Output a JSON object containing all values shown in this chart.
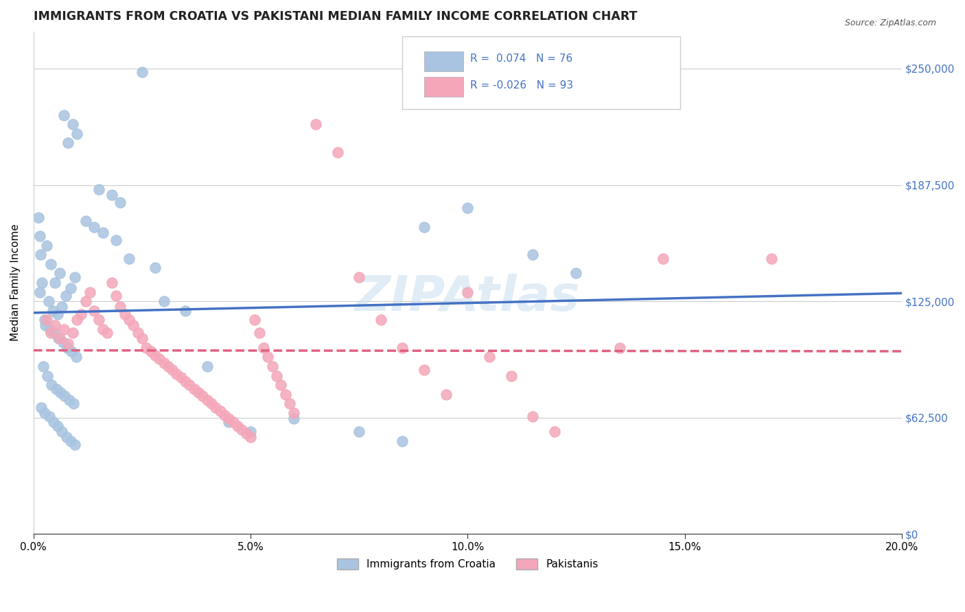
{
  "title": "IMMIGRANTS FROM CROATIA VS PAKISTANI MEDIAN FAMILY INCOME CORRELATION CHART",
  "source": "Source: ZipAtlas.com",
  "xlabel_ticks": [
    "0.0%",
    "5.0%",
    "10.0%",
    "15.0%",
    "20.0%"
  ],
  "xlabel_tick_vals": [
    0.0,
    5.0,
    10.0,
    15.0,
    20.0
  ],
  "ylabel": "Median Family Income",
  "ylabel_ticks": [
    "$0",
    "$62,500",
    "$125,000",
    "$187,500",
    "$250,000"
  ],
  "ylabel_tick_vals": [
    0,
    62500,
    125000,
    187500,
    250000
  ],
  "xlim": [
    0.0,
    20.0
  ],
  "ylim": [
    0,
    270000
  ],
  "croatia_color": "#a8c4e0",
  "pakistani_color": "#f4a7b9",
  "croatia_line_color": "#4472C4",
  "pakistani_line_color": "#E06080",
  "legend_R_croatia": "0.074",
  "legend_N_croatia": "76",
  "legend_R_pakistani": "-0.026",
  "legend_N_pakistani": "93",
  "watermark": "ZIPAtlas",
  "croatia_scatter_x": [
    0.5,
    0.9,
    1.0,
    0.7,
    0.8,
    0.3,
    0.4,
    0.2,
    0.15,
    0.6,
    0.35,
    0.45,
    0.25,
    0.55,
    0.65,
    0.75,
    0.85,
    0.95,
    0.28,
    0.38,
    0.48,
    0.58,
    0.68,
    0.78,
    0.88,
    0.98,
    0.22,
    0.32,
    0.42,
    0.52,
    0.62,
    0.72,
    0.82,
    0.92,
    0.18,
    0.26,
    0.36,
    0.46,
    0.56,
    0.66,
    0.76,
    0.86,
    0.96,
    0.12,
    0.14,
    0.16,
    2.5,
    1.5,
    1.8,
    2.0,
    1.2,
    1.4,
    1.6,
    1.9,
    2.2,
    2.8,
    3.0,
    3.5,
    4.0,
    4.5,
    5.0,
    6.0,
    7.5,
    8.5,
    9.0,
    10.0,
    11.5,
    12.5
  ],
  "croatia_scatter_y": [
    135000,
    220000,
    215000,
    225000,
    210000,
    155000,
    145000,
    135000,
    130000,
    140000,
    125000,
    120000,
    115000,
    118000,
    122000,
    128000,
    132000,
    138000,
    112000,
    110000,
    108000,
    105000,
    103000,
    100000,
    98000,
    95000,
    90000,
    85000,
    80000,
    78000,
    76000,
    74000,
    72000,
    70000,
    68000,
    65000,
    63000,
    60000,
    58000,
    55000,
    52000,
    50000,
    48000,
    170000,
    160000,
    150000,
    248000,
    185000,
    182000,
    178000,
    168000,
    165000,
    162000,
    158000,
    148000,
    143000,
    125000,
    120000,
    90000,
    60000,
    55000,
    62000,
    55000,
    50000,
    165000,
    175000,
    150000,
    140000
  ],
  "pakistani_scatter_x": [
    0.3,
    0.4,
    0.5,
    0.6,
    0.7,
    0.8,
    0.9,
    1.0,
    1.1,
    1.2,
    1.3,
    1.4,
    1.5,
    1.6,
    1.7,
    1.8,
    1.9,
    2.0,
    2.1,
    2.2,
    2.3,
    2.4,
    2.5,
    2.6,
    2.7,
    2.8,
    2.9,
    3.0,
    3.1,
    3.2,
    3.3,
    3.4,
    3.5,
    3.6,
    3.7,
    3.8,
    3.9,
    4.0,
    4.1,
    4.2,
    4.3,
    4.4,
    4.5,
    4.6,
    4.7,
    4.8,
    4.9,
    5.0,
    5.1,
    5.2,
    5.3,
    5.4,
    5.5,
    5.6,
    5.7,
    5.8,
    5.9,
    6.0,
    6.5,
    7.0,
    7.5,
    8.0,
    8.5,
    9.0,
    9.5,
    10.0,
    10.5,
    11.0,
    11.5,
    12.0,
    13.5,
    14.5,
    17.0
  ],
  "pakistani_scatter_y": [
    115000,
    108000,
    112000,
    105000,
    110000,
    102000,
    108000,
    115000,
    118000,
    125000,
    130000,
    120000,
    115000,
    110000,
    108000,
    135000,
    128000,
    122000,
    118000,
    115000,
    112000,
    108000,
    105000,
    100000,
    98000,
    96000,
    94000,
    92000,
    90000,
    88000,
    86000,
    84000,
    82000,
    80000,
    78000,
    76000,
    74000,
    72000,
    70000,
    68000,
    66000,
    64000,
    62000,
    60000,
    58000,
    56000,
    54000,
    52000,
    115000,
    108000,
    100000,
    95000,
    90000,
    85000,
    80000,
    75000,
    70000,
    65000,
    220000,
    205000,
    138000,
    115000,
    100000,
    88000,
    75000,
    130000,
    95000,
    85000,
    63000,
    55000,
    100000,
    148000,
    148000
  ]
}
